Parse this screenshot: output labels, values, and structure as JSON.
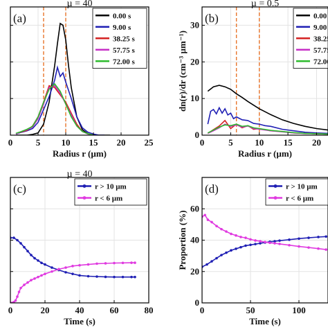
{
  "chart_data": [
    {
      "id": "a",
      "type": "line",
      "panel_letter": "(a)",
      "title": "µ = 40",
      "xlabel": "Radius r (µm)",
      "ylabel": "",
      "xlim": [
        0,
        25
      ],
      "ylim": [
        0,
        35
      ],
      "xticks": [
        0,
        5,
        10,
        15,
        20,
        25
      ],
      "yticks": [
        10,
        20,
        30
      ],
      "ytick_labels_shown": false,
      "grid": true,
      "legend_position": "top-right",
      "vlines": [
        6,
        10
      ],
      "vline_color": "#e8742a",
      "series": [
        {
          "name": "0.00 s",
          "color": "#000000",
          "x": [
            1,
            2,
            3,
            4,
            5,
            6,
            7,
            8,
            8.5,
            9,
            9.5,
            10,
            10.5,
            11,
            12,
            13,
            14,
            15,
            16,
            17,
            18
          ],
          "y": [
            0,
            0,
            0,
            0.2,
            0.6,
            3,
            9,
            19,
            25,
            30.5,
            30,
            26,
            19,
            13,
            5,
            1.5,
            0.4,
            0,
            0,
            0,
            0
          ]
        },
        {
          "name": "9.00 s",
          "color": "#1f1fb4",
          "x": [
            1,
            2,
            3,
            4,
            5,
            6,
            7,
            8,
            8.5,
            9,
            9.5,
            10,
            11,
            12,
            13,
            14,
            15,
            16,
            17
          ],
          "y": [
            0.3,
            0.8,
            1.2,
            1.8,
            3.5,
            7,
            10.5,
            15,
            18.5,
            16,
            17,
            14.5,
            10,
            5,
            2,
            0.8,
            0.3,
            0,
            0
          ]
        },
        {
          "name": "38.25 s",
          "color": "#d42222",
          "x": [
            1,
            2,
            3,
            4,
            5,
            6,
            7,
            8,
            9,
            10,
            11,
            12,
            13,
            14,
            15
          ],
          "y": [
            0.4,
            0.9,
            1.3,
            2.5,
            5,
            9,
            13.5,
            13,
            11,
            9,
            6,
            3,
            1,
            0.4,
            0
          ]
        },
        {
          "name": "57.75 s",
          "color": "#c62fc6",
          "x": [
            1,
            2,
            3,
            4,
            5,
            6,
            7,
            8,
            9,
            10,
            11,
            12,
            13,
            14,
            15
          ],
          "y": [
            0.3,
            1,
            1.5,
            2.2,
            4.5,
            8.5,
            13,
            13.5,
            11.5,
            8.5,
            5.5,
            2.5,
            1,
            0.3,
            0
          ]
        },
        {
          "name": "72.00 s",
          "color": "#2dbb2d",
          "x": [
            1,
            2,
            3,
            4,
            5,
            6,
            7,
            8,
            9,
            10,
            11,
            12,
            13,
            14,
            15
          ],
          "y": [
            0.5,
            1,
            1.6,
            2.4,
            5,
            9,
            12.5,
            14,
            12,
            8.5,
            5,
            2.5,
            1,
            0.4,
            0
          ]
        }
      ]
    },
    {
      "id": "b",
      "type": "line",
      "panel_letter": "(b)",
      "title": "µ = 0.5",
      "xlabel": "Radius r (µm)",
      "ylabel": "dn(r)/dr (cm⁻³ µm⁻¹)",
      "xlim": [
        0,
        22
      ],
      "ylim": [
        0,
        35
      ],
      "xticks": [
        0,
        5,
        10,
        15,
        20
      ],
      "yticks": [
        0,
        10,
        20,
        30
      ],
      "grid": true,
      "legend_position": "top-right",
      "vlines": [
        6,
        10
      ],
      "vline_color": "#e8742a",
      "series": [
        {
          "name": "0.00 s",
          "color": "#000000",
          "x": [
            1,
            2,
            3,
            4,
            5,
            6,
            7,
            8,
            10,
            12,
            14,
            16,
            18,
            20,
            22
          ],
          "y": [
            12,
            13.2,
            13.6,
            13.2,
            12.5,
            11.3,
            10.3,
            9.2,
            7.2,
            5.6,
            4.2,
            3.2,
            2.4,
            1.8,
            1.4
          ]
        },
        {
          "name": "9.00 s",
          "color": "#1f1fb4",
          "x": [
            1,
            1.5,
            2,
            2.5,
            3,
            3.5,
            4,
            4.5,
            5,
            5.5,
            6,
            7,
            8,
            9,
            10,
            11,
            12,
            14,
            16,
            18,
            20,
            22
          ],
          "y": [
            3,
            6.5,
            7,
            5.8,
            7.5,
            6,
            7.2,
            5.5,
            6,
            4.5,
            5,
            4.2,
            4,
            3.2,
            3,
            2.6,
            2.4,
            1.6,
            1.2,
            0.8,
            0.6,
            0.5
          ]
        },
        {
          "name": "38.25 s",
          "color": "#d42222",
          "x": [
            1,
            2,
            3,
            4,
            5,
            6,
            7,
            8,
            9,
            10,
            12,
            14,
            16,
            18,
            20,
            22
          ],
          "y": [
            0.5,
            1.5,
            2.5,
            4,
            1.8,
            3,
            2,
            2.6,
            1.6,
            1.8,
            1.2,
            1,
            0.6,
            0.5,
            0.4,
            0.3
          ]
        },
        {
          "name": "57.75 s",
          "color": "#c62fc6",
          "x": [
            1,
            2,
            3,
            4,
            5,
            6,
            7,
            8,
            9,
            10,
            12,
            14,
            16,
            18,
            20,
            22
          ],
          "y": [
            0.5,
            1.2,
            2,
            3,
            2.4,
            2.8,
            2.2,
            2.5,
            1.8,
            1.6,
            1.2,
            0.9,
            0.6,
            0.5,
            0.4,
            0.3
          ]
        },
        {
          "name": "72.00 s",
          "color": "#2dbb2d",
          "x": [
            1,
            2,
            3,
            4,
            5,
            6,
            7,
            8,
            9,
            10,
            12,
            14,
            16,
            18,
            20,
            22
          ],
          "y": [
            0.6,
            1.4,
            2.2,
            2.8,
            2.6,
            3,
            2.4,
            2.6,
            2,
            1.8,
            1.3,
            1,
            0.7,
            0.5,
            0.4,
            0.3
          ]
        }
      ]
    },
    {
      "id": "c",
      "type": "line",
      "panel_letter": "(c)",
      "title": "µ = 40",
      "xlabel": "Time (s)",
      "ylabel": "",
      "xlim": [
        0,
        80
      ],
      "ylim": [
        0,
        80
      ],
      "xticks": [
        0,
        20,
        40,
        60,
        80
      ],
      "yticks": [
        20,
        40,
        60,
        80
      ],
      "ytick_labels_shown": false,
      "grid": true,
      "legend_position": "top-right",
      "series": [
        {
          "name": "r > 10 µm",
          "color": "#1f1fb4",
          "x": [
            0,
            2,
            4,
            6,
            8,
            10,
            12,
            14,
            16,
            18,
            20,
            24,
            28,
            32,
            36,
            40,
            45,
            50,
            55,
            60,
            65,
            70,
            72
          ],
          "y": [
            41.5,
            41.5,
            40,
            38,
            35.5,
            33,
            30.5,
            28.5,
            27,
            25.5,
            24.5,
            22.5,
            21,
            19.5,
            18.5,
            17.5,
            17,
            16.8,
            16.6,
            16.5,
            16.5,
            16.5,
            16.5
          ]
        },
        {
          "name": "r < 6 µm",
          "color": "#e03ae0",
          "x": [
            0,
            1,
            2,
            3,
            4,
            5,
            6,
            8,
            10,
            12,
            14,
            16,
            18,
            20,
            24,
            28,
            32,
            36,
            40,
            45,
            50,
            55,
            60,
            65,
            70,
            72
          ],
          "y": [
            0,
            0,
            0.5,
            1.5,
            4,
            7,
            9.5,
            11.5,
            13,
            14.5,
            15.5,
            16.5,
            17.5,
            18.5,
            20,
            21.5,
            22.5,
            23.5,
            24,
            24.5,
            25,
            25.2,
            25.4,
            25.5,
            25.6,
            25.6
          ]
        }
      ]
    },
    {
      "id": "d",
      "type": "line",
      "panel_letter": "(d)",
      "title": "",
      "xlabel": "Time (s)",
      "ylabel": "Proportion (%)",
      "xlim": [
        0,
        130
      ],
      "ylim": [
        0,
        80
      ],
      "xticks": [
        0,
        50,
        100
      ],
      "yticks": [
        0,
        20,
        40,
        60
      ],
      "grid": true,
      "legend_position": "top-right",
      "series": [
        {
          "name": "r > 10 µm",
          "color": "#1f1fb4",
          "x": [
            0,
            5,
            10,
            15,
            20,
            25,
            30,
            35,
            40,
            45,
            50,
            55,
            60,
            65,
            70,
            75,
            80,
            90,
            100,
            110,
            120,
            128
          ],
          "y": [
            23,
            24.5,
            26.5,
            28.5,
            30.5,
            32,
            33.5,
            34.5,
            35.5,
            36.5,
            37,
            37.5,
            38,
            38.5,
            39,
            39.3,
            39.7,
            40.3,
            41,
            41.5,
            42,
            42.3
          ]
        },
        {
          "name": "r < 6 µm",
          "color": "#e03ae0",
          "x": [
            0,
            3,
            6,
            10,
            15,
            20,
            25,
            30,
            35,
            40,
            45,
            50,
            55,
            60,
            65,
            70,
            75,
            80,
            90,
            100,
            110,
            120,
            128
          ],
          "y": [
            55,
            56,
            53,
            51.5,
            49,
            47,
            45.5,
            44,
            43,
            42,
            41.5,
            40.5,
            39.8,
            39.3,
            38.8,
            38.3,
            38,
            37.6,
            36.8,
            36,
            35.3,
            34.6,
            34
          ]
        }
      ]
    }
  ]
}
